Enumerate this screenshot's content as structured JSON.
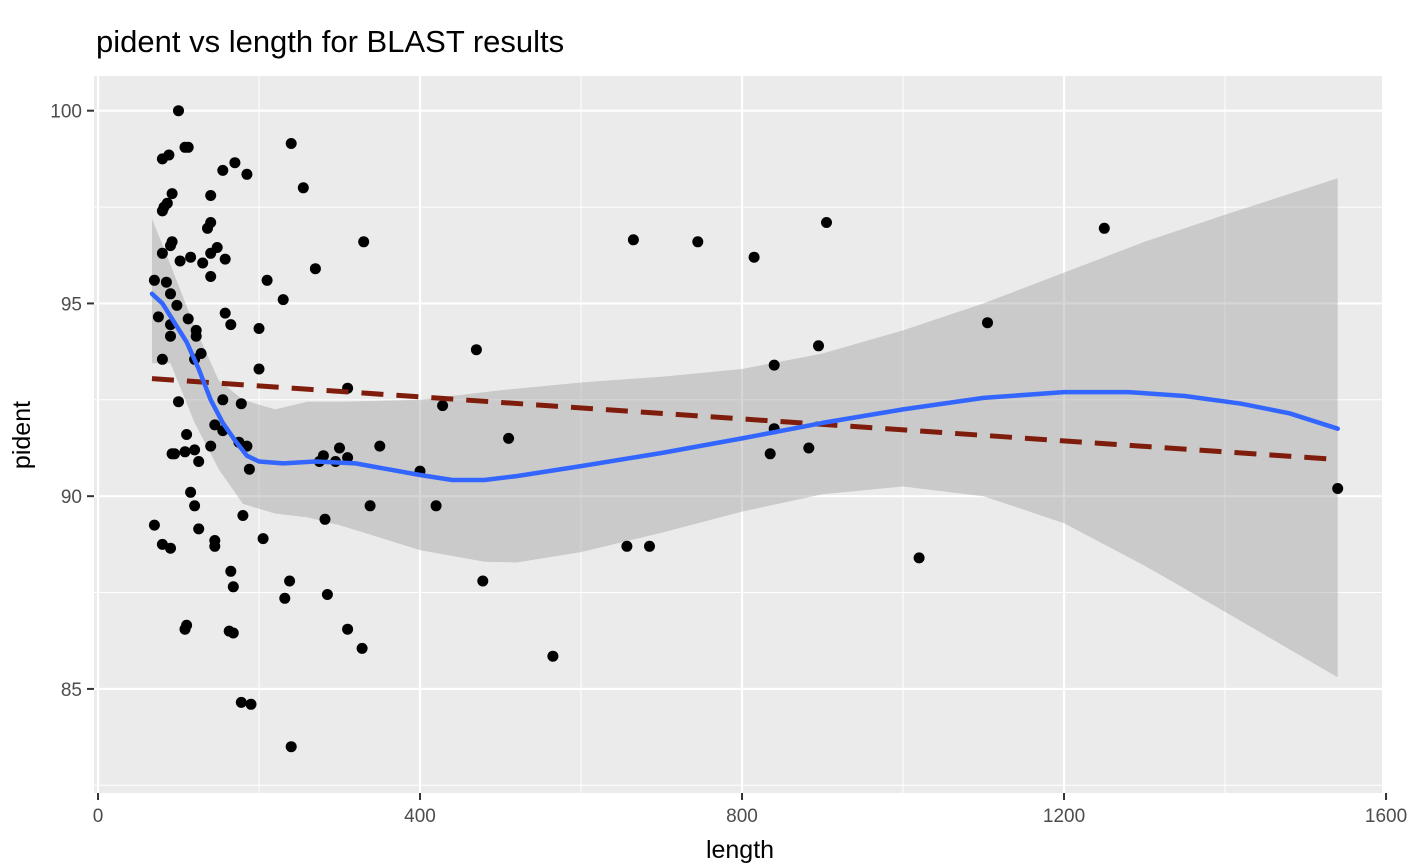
{
  "chart_data": {
    "type": "scatter",
    "title": "pident vs length for BLAST results",
    "xlabel": "length",
    "ylabel": "pident",
    "xlim": [
      -5,
      1595
    ],
    "ylim": [
      82.3,
      100.9
    ],
    "x_ticks": [
      0,
      400,
      800,
      1200,
      1600
    ],
    "x_tick_labels": [
      "0",
      "400",
      "800",
      "1200",
      "1600"
    ],
    "y_ticks": [
      85,
      90,
      95,
      100
    ],
    "y_tick_labels": [
      "85",
      "90",
      "95",
      "100"
    ],
    "grid": true,
    "colors": {
      "panel": "#ebebeb",
      "grid": "#ffffff",
      "points": "#000000",
      "smooth_line": "#3366ff",
      "ribbon": "#999999",
      "linear_fit": "#7f1d0c"
    },
    "points": [
      [
        100,
        100.0
      ],
      [
        240,
        99.15
      ],
      [
        108,
        99.05
      ],
      [
        112,
        99.05
      ],
      [
        88,
        98.85
      ],
      [
        80,
        98.75
      ],
      [
        170,
        98.65
      ],
      [
        185,
        98.35
      ],
      [
        155,
        98.45
      ],
      [
        255,
        98.0
      ],
      [
        92,
        97.85
      ],
      [
        140,
        97.8
      ],
      [
        80,
        97.4
      ],
      [
        82,
        97.5
      ],
      [
        86,
        97.6
      ],
      [
        140,
        97.1
      ],
      [
        136,
        96.95
      ],
      [
        330,
        96.6
      ],
      [
        665,
        96.65
      ],
      [
        745,
        96.6
      ],
      [
        92,
        96.6
      ],
      [
        90,
        96.5
      ],
      [
        148,
        96.45
      ],
      [
        140,
        96.3
      ],
      [
        80,
        96.3
      ],
      [
        115,
        96.2
      ],
      [
        102,
        96.1
      ],
      [
        158,
        96.15
      ],
      [
        130,
        96.05
      ],
      [
        270,
        95.9
      ],
      [
        815,
        96.2
      ],
      [
        905,
        97.1
      ],
      [
        1250,
        96.95
      ],
      [
        70,
        95.6
      ],
      [
        85,
        95.55
      ],
      [
        210,
        95.6
      ],
      [
        140,
        95.7
      ],
      [
        90,
        95.25
      ],
      [
        230,
        95.1
      ],
      [
        158,
        94.75
      ],
      [
        75,
        94.65
      ],
      [
        98,
        94.95
      ],
      [
        112,
        94.6
      ],
      [
        90,
        94.45
      ],
      [
        165,
        94.45
      ],
      [
        200,
        94.35
      ],
      [
        122,
        94.3
      ],
      [
        90,
        94.15
      ],
      [
        122,
        94.15
      ],
      [
        1105,
        94.5
      ],
      [
        895,
        93.9
      ],
      [
        840,
        93.4
      ],
      [
        120,
        93.55
      ],
      [
        128,
        93.7
      ],
      [
        80,
        93.55
      ],
      [
        200,
        93.3
      ],
      [
        470,
        93.8
      ],
      [
        310,
        92.8
      ],
      [
        100,
        92.45
      ],
      [
        155,
        92.5
      ],
      [
        178,
        92.4
      ],
      [
        428,
        92.35
      ],
      [
        145,
        91.85
      ],
      [
        155,
        91.7
      ],
      [
        110,
        91.6
      ],
      [
        185,
        91.3
      ],
      [
        140,
        91.3
      ],
      [
        120,
        91.2
      ],
      [
        108,
        91.15
      ],
      [
        95,
        91.1
      ],
      [
        92,
        91.1
      ],
      [
        125,
        90.9
      ],
      [
        175,
        91.4
      ],
      [
        300,
        91.25
      ],
      [
        350,
        91.3
      ],
      [
        510,
        91.5
      ],
      [
        280,
        91.05
      ],
      [
        275,
        90.9
      ],
      [
        295,
        90.9
      ],
      [
        310,
        91.0
      ],
      [
        840,
        91.75
      ],
      [
        835,
        91.1
      ],
      [
        883,
        91.25
      ],
      [
        188,
        90.7
      ],
      [
        400,
        90.65
      ],
      [
        1540,
        90.2
      ],
      [
        115,
        90.1
      ],
      [
        120,
        89.75
      ],
      [
        338,
        89.75
      ],
      [
        420,
        89.75
      ],
      [
        282,
        89.4
      ],
      [
        180,
        89.5
      ],
      [
        70,
        89.25
      ],
      [
        125,
        89.15
      ],
      [
        205,
        88.9
      ],
      [
        145,
        88.85
      ],
      [
        145,
        88.7
      ],
      [
        90,
        88.65
      ],
      [
        80,
        88.75
      ],
      [
        657,
        88.7
      ],
      [
        685,
        88.7
      ],
      [
        1020,
        88.4
      ],
      [
        165,
        88.05
      ],
      [
        238,
        87.8
      ],
      [
        478,
        87.8
      ],
      [
        168,
        87.65
      ],
      [
        285,
        87.45
      ],
      [
        232,
        87.35
      ],
      [
        110,
        86.65
      ],
      [
        108,
        86.55
      ],
      [
        310,
        86.55
      ],
      [
        163,
        86.5
      ],
      [
        168,
        86.45
      ],
      [
        328,
        86.05
      ],
      [
        565,
        85.85
      ],
      [
        178,
        84.65
      ],
      [
        190,
        84.6
      ],
      [
        240,
        83.5
      ]
    ],
    "smooth_line": [
      [
        67,
        95.25
      ],
      [
        80,
        95.0
      ],
      [
        95,
        94.5
      ],
      [
        110,
        94.0
      ],
      [
        125,
        93.3
      ],
      [
        140,
        92.5
      ],
      [
        155,
        91.9
      ],
      [
        170,
        91.45
      ],
      [
        185,
        91.05
      ],
      [
        200,
        90.9
      ],
      [
        230,
        90.85
      ],
      [
        270,
        90.9
      ],
      [
        320,
        90.85
      ],
      [
        360,
        90.7
      ],
      [
        400,
        90.55
      ],
      [
        440,
        90.42
      ],
      [
        480,
        90.42
      ],
      [
        520,
        90.52
      ],
      [
        600,
        90.78
      ],
      [
        700,
        91.12
      ],
      [
        800,
        91.5
      ],
      [
        900,
        91.9
      ],
      [
        1000,
        92.25
      ],
      [
        1100,
        92.55
      ],
      [
        1200,
        92.7
      ],
      [
        1280,
        92.7
      ],
      [
        1350,
        92.6
      ],
      [
        1420,
        92.4
      ],
      [
        1480,
        92.15
      ],
      [
        1540,
        91.75
      ]
    ],
    "ribbon_upper": [
      [
        67,
        97.2
      ],
      [
        90,
        96.0
      ],
      [
        120,
        94.4
      ],
      [
        150,
        93.0
      ],
      [
        180,
        92.5
      ],
      [
        220,
        92.25
      ],
      [
        260,
        92.45
      ],
      [
        300,
        92.45
      ],
      [
        400,
        92.5
      ],
      [
        500,
        92.75
      ],
      [
        600,
        92.95
      ],
      [
        700,
        93.1
      ],
      [
        800,
        93.3
      ],
      [
        900,
        93.7
      ],
      [
        1000,
        94.3
      ],
      [
        1100,
        95.0
      ],
      [
        1200,
        95.8
      ],
      [
        1300,
        96.6
      ],
      [
        1400,
        97.3
      ],
      [
        1540,
        98.25
      ]
    ],
    "ribbon_lower": [
      [
        67,
        93.45
      ],
      [
        90,
        93.45
      ],
      [
        120,
        91.9
      ],
      [
        150,
        90.7
      ],
      [
        180,
        89.8
      ],
      [
        220,
        89.55
      ],
      [
        260,
        89.45
      ],
      [
        300,
        89.25
      ],
      [
        400,
        88.6
      ],
      [
        480,
        88.3
      ],
      [
        520,
        88.28
      ],
      [
        600,
        88.55
      ],
      [
        700,
        89.05
      ],
      [
        800,
        89.6
      ],
      [
        900,
        90.05
      ],
      [
        1000,
        90.25
      ],
      [
        1100,
        90.0
      ],
      [
        1200,
        89.3
      ],
      [
        1300,
        88.2
      ],
      [
        1400,
        87.0
      ],
      [
        1540,
        85.3
      ]
    ],
    "linear_fit": {
      "x": [
        67,
        1540
      ],
      "y": [
        93.05,
        90.95
      ]
    }
  }
}
